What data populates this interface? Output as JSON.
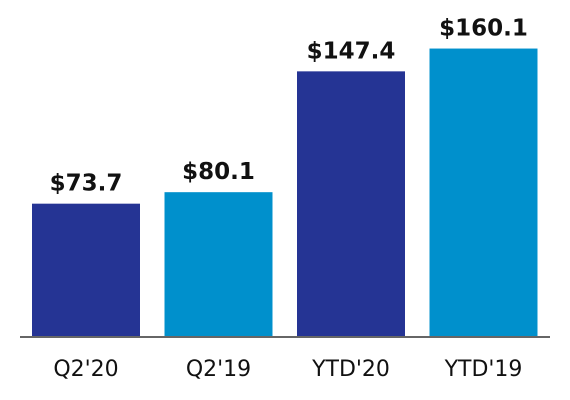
{
  "chart_data": {
    "type": "bar",
    "categories": [
      "Q2'20",
      "Q2'19",
      "YTD'20",
      "YTD'19"
    ],
    "values": [
      73.7,
      80.1,
      147.4,
      160.1
    ],
    "data_labels": [
      "$73.7",
      "$80.1",
      "$147.4",
      "$160.1"
    ],
    "bar_colors": [
      "#253494",
      "#0090cc",
      "#253494",
      "#0090cc"
    ],
    "axis_color": "#666666",
    "ylim": [
      0,
      176
    ],
    "grid": false,
    "legend": "none"
  }
}
